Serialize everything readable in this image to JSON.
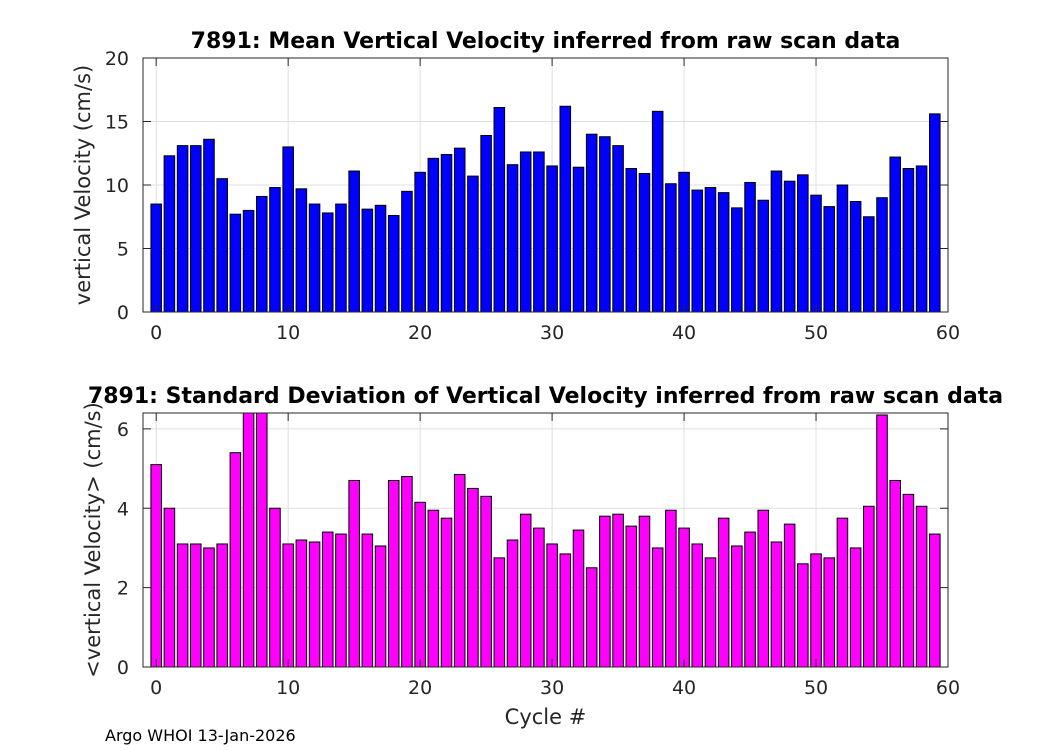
{
  "chart_data": [
    {
      "type": "bar",
      "title": "7891: Mean Vertical Velocity inferred from raw scan data",
      "xlabel": "",
      "ylabel": "vertical Velocity (cm/s)",
      "xlim": [
        -1,
        60
      ],
      "ylim": [
        0,
        20
      ],
      "xticks": [
        0,
        10,
        20,
        30,
        40,
        50,
        60
      ],
      "yticks": [
        0,
        5,
        10,
        15,
        20
      ],
      "grid": true,
      "bar_color": "#0000ff",
      "x": [
        0,
        1,
        2,
        3,
        4,
        5,
        6,
        7,
        8,
        9,
        10,
        11,
        12,
        13,
        14,
        15,
        16,
        17,
        18,
        19,
        20,
        21,
        22,
        23,
        24,
        25,
        26,
        27,
        28,
        29,
        30,
        31,
        32,
        33,
        34,
        35,
        36,
        37,
        38,
        39,
        40,
        41,
        42,
        43,
        44,
        45,
        46,
        47,
        48,
        49,
        50,
        51,
        52,
        53,
        54,
        55,
        56,
        57,
        58,
        59
      ],
      "values": [
        8.5,
        12.3,
        13.1,
        13.1,
        13.6,
        10.5,
        7.7,
        8.0,
        9.1,
        9.8,
        13.0,
        9.7,
        8.5,
        7.8,
        8.5,
        11.1,
        8.1,
        8.4,
        7.6,
        9.5,
        11.0,
        12.1,
        12.4,
        12.9,
        10.7,
        13.9,
        16.1,
        11.6,
        12.6,
        12.6,
        11.5,
        16.2,
        11.4,
        14.0,
        13.8,
        13.1,
        11.3,
        10.9,
        15.8,
        10.1,
        11.0,
        9.6,
        9.8,
        9.4,
        8.2,
        10.2,
        8.8,
        11.1,
        10.3,
        10.8,
        9.2,
        8.3,
        10.0,
        8.7,
        7.5,
        9.0,
        12.2,
        11.3,
        11.5,
        15.6
      ]
    },
    {
      "type": "bar",
      "title": "7891: Standard Deviation of Vertical Velocity inferred from raw scan data",
      "xlabel": "Cycle #",
      "ylabel": "<vertical Velocity> (cm/s)",
      "xlim": [
        -1,
        60
      ],
      "ylim": [
        0,
        6.4
      ],
      "xticks": [
        0,
        10,
        20,
        30,
        40,
        50,
        60
      ],
      "yticks": [
        0,
        2,
        4,
        6
      ],
      "grid": true,
      "bar_color": "#ff00ff",
      "x": [
        0,
        1,
        2,
        3,
        4,
        5,
        6,
        7,
        8,
        9,
        10,
        11,
        12,
        13,
        14,
        15,
        16,
        17,
        18,
        19,
        20,
        21,
        22,
        23,
        24,
        25,
        26,
        27,
        28,
        29,
        30,
        31,
        32,
        33,
        34,
        35,
        36,
        37,
        38,
        39,
        40,
        41,
        42,
        43,
        44,
        45,
        46,
        47,
        48,
        49,
        50,
        51,
        52,
        53,
        54,
        55,
        56,
        57,
        58,
        59
      ],
      "values": [
        5.1,
        4.0,
        3.1,
        3.1,
        3.0,
        3.1,
        5.4,
        6.4,
        6.4,
        4.0,
        3.1,
        3.2,
        3.15,
        3.4,
        3.35,
        4.7,
        3.35,
        3.05,
        4.7,
        4.8,
        4.15,
        3.95,
        3.75,
        4.85,
        4.5,
        4.3,
        2.75,
        3.2,
        3.85,
        3.5,
        3.1,
        2.85,
        3.45,
        2.5,
        3.8,
        3.85,
        3.55,
        3.8,
        3.0,
        3.95,
        3.5,
        3.1,
        2.75,
        3.75,
        3.05,
        3.4,
        3.95,
        3.15,
        3.6,
        2.6,
        2.85,
        2.75,
        3.75,
        3.0,
        4.05,
        6.35,
        4.7,
        4.35,
        4.05,
        3.35
      ]
    }
  ],
  "footer": "Argo WHOI 13-Jan-2026"
}
